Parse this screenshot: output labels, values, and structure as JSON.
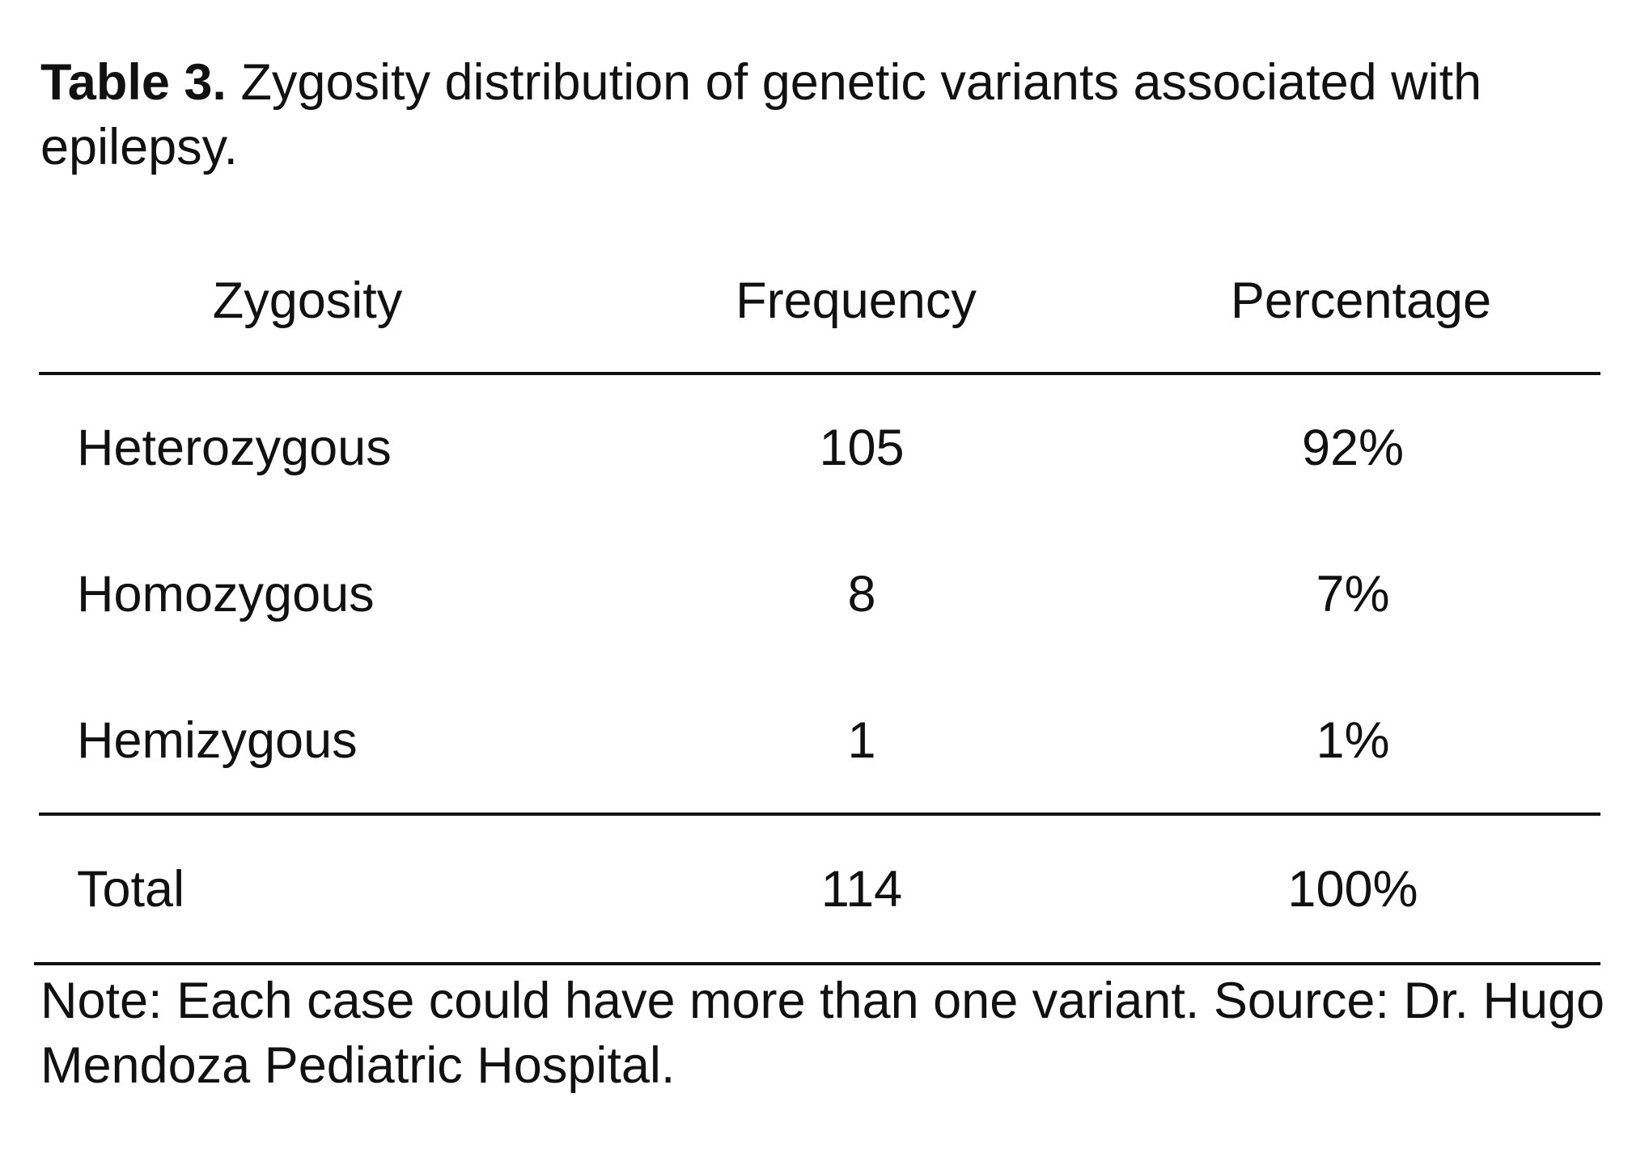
{
  "caption": {
    "label": "Table 3.",
    "text": "Zygosity distribution of genetic variants associated with epilepsy."
  },
  "table": {
    "headers": [
      "Zygosity",
      "Frequency",
      "Percentage"
    ],
    "rows": [
      {
        "zygosity": "Heterozygous",
        "frequency": "105",
        "percentage": "92%"
      },
      {
        "zygosity": "Homozygous",
        "frequency": "8",
        "percentage": "7%"
      },
      {
        "zygosity": "Hemizygous",
        "frequency": "1",
        "percentage": "1%"
      }
    ],
    "total": {
      "zygosity": "Total",
      "frequency": "114",
      "percentage": "100%"
    }
  },
  "note": "Note:  Each case could have more than one variant.  Source: Dr. Hugo Mendoza Pediatric Hospital."
}
